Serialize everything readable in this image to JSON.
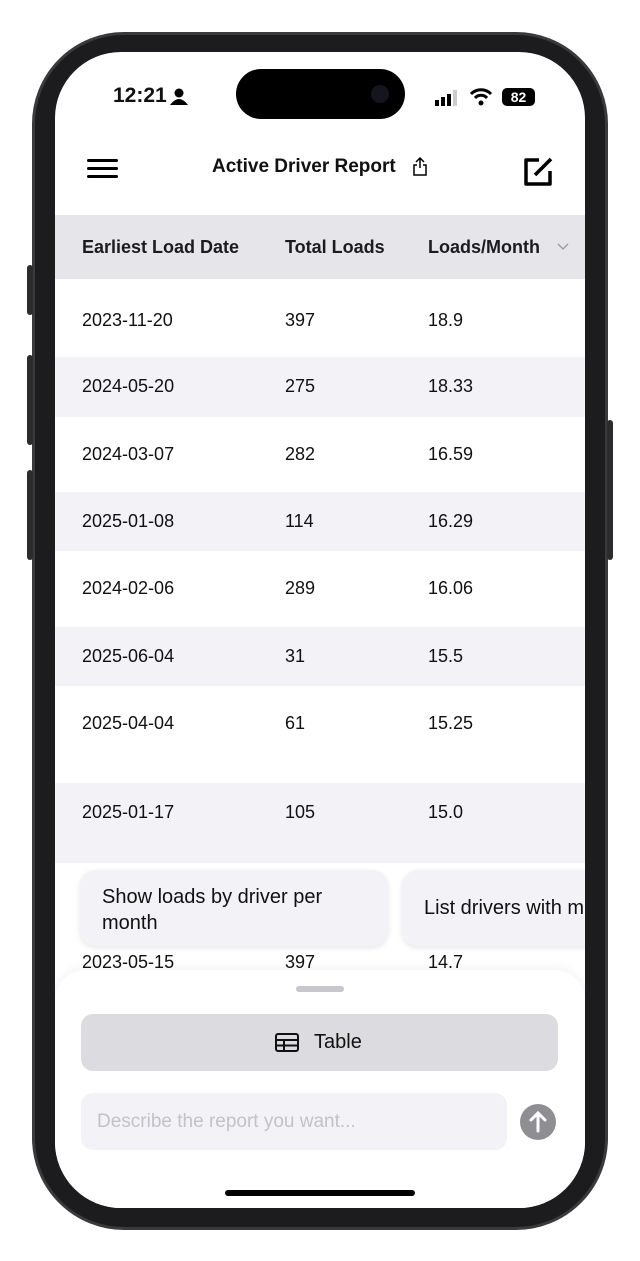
{
  "status_bar": {
    "time": "12:21",
    "battery": "82"
  },
  "header": {
    "title": "Active Driver Report"
  },
  "table": {
    "columns": [
      "Earliest Load Date",
      "Total Loads",
      "Loads/Month"
    ],
    "rows": [
      [
        "2023-11-20",
        "397",
        "18.9"
      ],
      [
        "2024-05-20",
        "275",
        "18.33"
      ],
      [
        "2024-03-07",
        "282",
        "16.59"
      ],
      [
        "2025-01-08",
        "114",
        "16.29"
      ],
      [
        "2024-02-06",
        "289",
        "16.06"
      ],
      [
        "2025-06-04",
        "31",
        "15.5"
      ],
      [
        "2025-04-04",
        "61",
        "15.25"
      ],
      [
        "2025-01-17",
        "105",
        "15.0"
      ],
      [
        "2023-05-15",
        "397",
        "14.7"
      ]
    ]
  },
  "suggestions": [
    "Show loads by driver per month",
    "List drivers with m"
  ],
  "sheet": {
    "view_button": "Table",
    "input_placeholder": "Describe the report you want..."
  },
  "colors": {
    "header_bg": "#e5e5ea",
    "stripe": "#f2f2f7",
    "send": "#8e8e93"
  }
}
